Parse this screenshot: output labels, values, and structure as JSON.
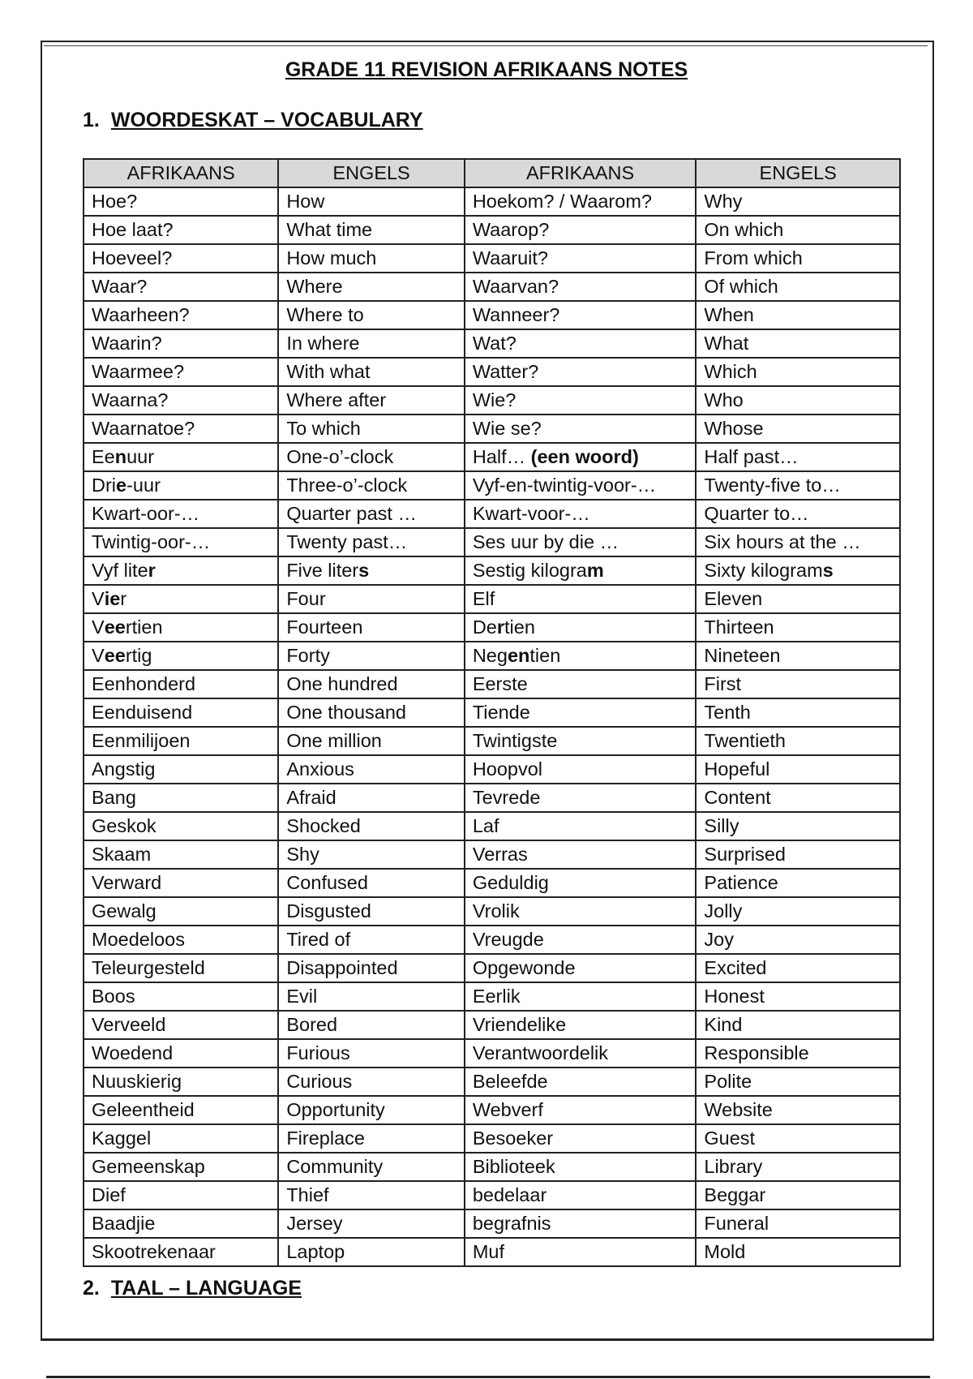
{
  "document": {
    "title": "GRADE 11 REVISION AFRIKAANS NOTES",
    "section1": {
      "number": "1.",
      "heading": "WOORDESKAT – VOCABULARY"
    },
    "section2": {
      "number": "2.",
      "heading": "TAAL – LANGUAGE"
    }
  },
  "table": {
    "headers": [
      "AFRIKAANS",
      "ENGELS",
      "AFRIKAANS",
      "ENGELS"
    ],
    "rows": [
      [
        "Hoe?",
        "How",
        "Hoekom? / Waarom?",
        "Why"
      ],
      [
        "Hoe laat?",
        "What time",
        "Waarop?",
        "On which"
      ],
      [
        "Hoeveel?",
        "How much",
        "Waaruit?",
        "From which"
      ],
      [
        "Waar?",
        "Where",
        "Waarvan?",
        "Of which"
      ],
      [
        "Waarheen?",
        "Where to",
        "Wanneer?",
        "When"
      ],
      [
        "Waarin?",
        "In where",
        "Wat?",
        "What"
      ],
      [
        "Waarmee?",
        "With what",
        "Watter?",
        "Which"
      ],
      [
        "Waarna?",
        "Where after",
        "Wie?",
        "Who"
      ],
      [
        "Waarnatoe?",
        "To which",
        "Wie se?",
        "Whose"
      ],
      [
        [
          "Ee",
          {
            "b": "n"
          },
          "uur"
        ],
        "One-o’-clock",
        [
          "Half… ",
          {
            "b": "(een woord)"
          }
        ],
        "Half past…"
      ],
      [
        [
          "Dri",
          {
            "b": "e"
          },
          "-uur"
        ],
        "Three-o’-clock",
        "Vyf-en-twintig-voor-…",
        "Twenty-five to…"
      ],
      [
        "Kwart-oor-…",
        "Quarter past …",
        "Kwart-voor-…",
        "Quarter to…"
      ],
      [
        "Twintig-oor-…",
        "Twenty past…",
        "Ses uur by die …",
        "Six hours at the …"
      ],
      [
        [
          "Vyf lite",
          {
            "b": "r"
          }
        ],
        [
          "Five liter",
          {
            "b": "s"
          }
        ],
        [
          "Sestig kilogra",
          {
            "b": "m"
          }
        ],
        [
          "Sixty kilogram",
          {
            "b": "s"
          }
        ]
      ],
      [
        [
          "V",
          {
            "b": "ie"
          },
          "r"
        ],
        "Four",
        "Elf",
        "Eleven"
      ],
      [
        [
          "V",
          {
            "b": "ee"
          },
          "rtien"
        ],
        "Fourteen",
        [
          "De",
          {
            "b": "r"
          },
          "tien"
        ],
        "Thirteen"
      ],
      [
        [
          "V",
          {
            "b": "ee"
          },
          "rtig"
        ],
        "Forty",
        [
          "Neg",
          {
            "b": "en"
          },
          "tien"
        ],
        "Nineteen"
      ],
      [
        "Eenhonderd",
        "One hundred",
        "Eerste",
        "First"
      ],
      [
        "Eenduisend",
        "One thousand",
        "Tiende",
        "Tenth"
      ],
      [
        "Eenmilijoen",
        "One million",
        "Twintigste",
        "Twentieth"
      ],
      [
        "Angstig",
        "Anxious",
        "Hoopvol",
        "Hopeful"
      ],
      [
        "Bang",
        "Afraid",
        "Tevrede",
        "Content"
      ],
      [
        "Geskok",
        "Shocked",
        "Laf",
        "Silly"
      ],
      [
        "Skaam",
        "Shy",
        "Verras",
        "Surprised"
      ],
      [
        "Verward",
        "Confused",
        "Geduldig",
        "Patience"
      ],
      [
        "Gewalg",
        "Disgusted",
        "Vrolik",
        "Jolly"
      ],
      [
        "Moedeloos",
        "Tired of",
        "Vreugde",
        "Joy"
      ],
      [
        "Teleurgesteld",
        "Disappointed",
        "Opgewonde",
        "Excited"
      ],
      [
        "Boos",
        "Evil",
        "Eerlik",
        "Honest"
      ],
      [
        "Verveeld",
        "Bored",
        "Vriendelike",
        "Kind"
      ],
      [
        "Woedend",
        "Furious",
        "Verantwoordelik",
        "Responsible"
      ],
      [
        "Nuuskierig",
        "Curious",
        "Beleefde",
        "Polite"
      ],
      [
        "Geleentheid",
        "Opportunity",
        "Webverf",
        "Website"
      ],
      [
        "Kaggel",
        "Fireplace",
        "Besoeker",
        "Guest"
      ],
      [
        "Gemeenskap",
        "Community",
        "Biblioteek",
        "Library"
      ],
      [
        "Dief",
        "Thief",
        "bedelaar",
        "Beggar"
      ],
      [
        "Baadjie",
        "Jersey",
        "begrafnis",
        "Funeral"
      ],
      [
        "Skootrekenaar",
        "Laptop",
        "Muf",
        "Mold"
      ]
    ]
  }
}
